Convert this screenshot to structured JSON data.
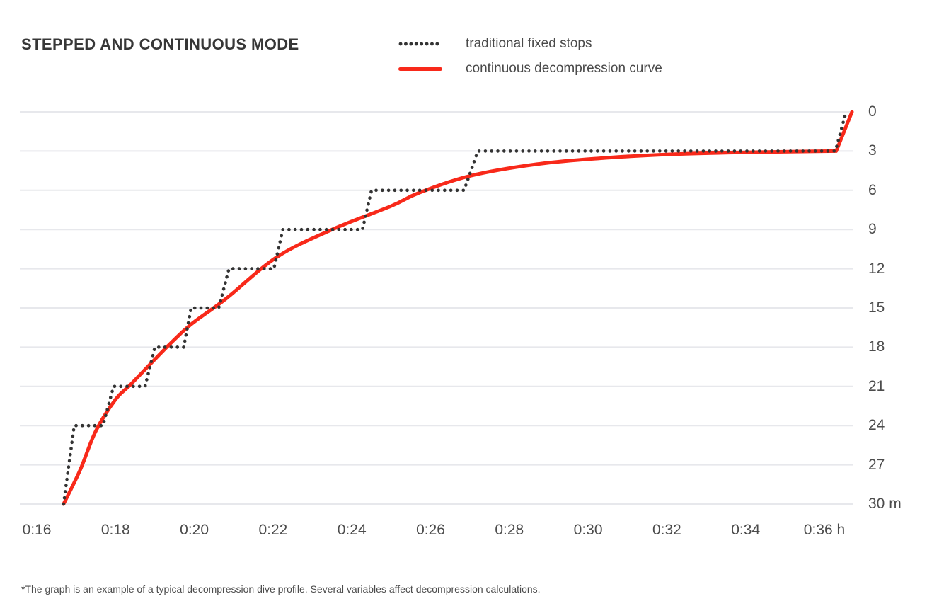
{
  "page": {
    "title": "STEPPED AND CONTINUOUS MODE",
    "footnote": "*The graph is an example of a typical decompression dive profile. Several variables affect decompression calculations."
  },
  "colors": {
    "series_red": "#f8291a",
    "series_dark": "#333333",
    "grid": "#e7e8ec",
    "title_text": "#373737",
    "label_text": "#4c4c4c",
    "legend_text": "#4a4a4a"
  },
  "chart_data": {
    "type": "line",
    "title": "STEPPED AND CONTINUOUS MODE",
    "footnote": "*The graph is an example of a typical decompression dive profile. Several variables affect decompression calculations.",
    "grid": true,
    "legend_position": "top",
    "x_axis": {
      "unit": "h",
      "tick_values_minutes": [
        16,
        18,
        20,
        22,
        24,
        26,
        28,
        30,
        32,
        34,
        36
      ],
      "tick_labels": [
        "0:16",
        "0:18",
        "0:20",
        "0:22",
        "0:24",
        "0:26",
        "0:28",
        "0:30",
        "0:32",
        "0:34",
        "0:36 h"
      ]
    },
    "y_axis": {
      "unit": "m",
      "position": "right",
      "inverted": true,
      "tick_values": [
        0,
        3,
        6,
        9,
        12,
        15,
        18,
        21,
        24,
        27,
        30
      ],
      "tick_labels": [
        "0",
        "3",
        "6",
        "9",
        "12",
        "15",
        "18",
        "21",
        "24",
        "27",
        "30 m"
      ]
    },
    "ylim_m": [
      0,
      30
    ],
    "xlim_minutes": [
      15.6,
      36.9
    ],
    "legend": [
      {
        "name": "traditional fixed stops",
        "style": "dotted",
        "color": "#333333"
      },
      {
        "name": "continuous decompression curve",
        "style": "solid",
        "color": "#f8291a"
      }
    ],
    "series": [
      {
        "name": "traditional fixed stops",
        "type": "step",
        "color": "#333333",
        "points_time_min_depth_m": [
          [
            16.68,
            30
          ],
          [
            16.95,
            24
          ],
          [
            17.68,
            24
          ],
          [
            17.95,
            21
          ],
          [
            18.75,
            21
          ],
          [
            19.0,
            18
          ],
          [
            19.73,
            18
          ],
          [
            19.92,
            15
          ],
          [
            20.62,
            15
          ],
          [
            20.88,
            12
          ],
          [
            22.02,
            12
          ],
          [
            22.25,
            9
          ],
          [
            24.27,
            9
          ],
          [
            24.5,
            6
          ],
          [
            26.85,
            6
          ],
          [
            27.2,
            3
          ],
          [
            36.28,
            3
          ],
          [
            36.55,
            0
          ]
        ]
      },
      {
        "name": "continuous decompression curve",
        "type": "smooth",
        "color": "#f8291a",
        "points_time_min_depth_m": [
          [
            16.68,
            30
          ],
          [
            17.1,
            27.4
          ],
          [
            17.5,
            24.4
          ],
          [
            18.0,
            22.0
          ],
          [
            18.4,
            20.8
          ],
          [
            19.3,
            18.0
          ],
          [
            19.9,
            16.3
          ],
          [
            20.8,
            14.3
          ],
          [
            22.1,
            11.1
          ],
          [
            23.5,
            9.0
          ],
          [
            25.0,
            7.2
          ],
          [
            25.7,
            6.2
          ],
          [
            27.0,
            4.9
          ],
          [
            28.7,
            4.0
          ],
          [
            30.3,
            3.55
          ],
          [
            32.1,
            3.25
          ],
          [
            34.0,
            3.1
          ],
          [
            36.3,
            3.0
          ],
          [
            36.7,
            0
          ]
        ]
      }
    ]
  }
}
